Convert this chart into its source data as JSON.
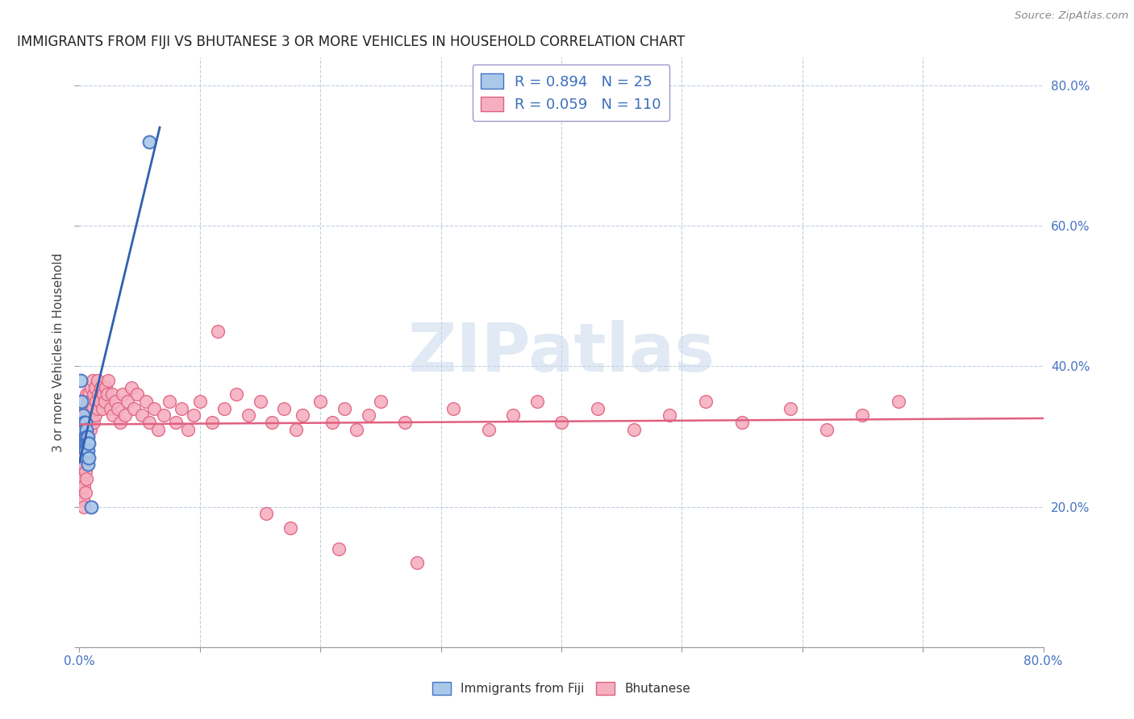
{
  "title": "IMMIGRANTS FROM FIJI VS BHUTANESE 3 OR MORE VEHICLES IN HOUSEHOLD CORRELATION CHART",
  "source": "Source: ZipAtlas.com",
  "ylabel": "3 or more Vehicles in Household",
  "right_yticks": [
    "80.0%",
    "60.0%",
    "40.0%",
    "20.0%"
  ],
  "right_ytick_vals": [
    0.8,
    0.6,
    0.4,
    0.2
  ],
  "xmin": 0.0,
  "xmax": 0.8,
  "ymin": 0.0,
  "ymax": 0.84,
  "fiji_R": 0.894,
  "fiji_N": 25,
  "bhutanese_R": 0.059,
  "bhutanese_N": 110,
  "fiji_color": "#aac8e8",
  "fiji_edge_color": "#4472c4",
  "fiji_line_color": "#3060b0",
  "bhutanese_color": "#f5b0c0",
  "bhutanese_edge_color": "#e06080",
  "bhutanese_line_color": "#e06080",
  "legend_R_color": "#3a6fbd",
  "watermark_text": "ZIPatlas",
  "watermark_color": "#c8d8ec",
  "fiji_x": [
    0.001,
    0.002,
    0.002,
    0.003,
    0.003,
    0.003,
    0.004,
    0.004,
    0.004,
    0.005,
    0.005,
    0.005,
    0.005,
    0.006,
    0.006,
    0.006,
    0.006,
    0.007,
    0.007,
    0.007,
    0.007,
    0.008,
    0.008,
    0.01,
    0.058
  ],
  "fiji_y": [
    0.38,
    0.35,
    0.32,
    0.33,
    0.31,
    0.3,
    0.32,
    0.31,
    0.29,
    0.32,
    0.3,
    0.29,
    0.28,
    0.31,
    0.3,
    0.29,
    0.27,
    0.3,
    0.29,
    0.28,
    0.26,
    0.29,
    0.27,
    0.2,
    0.72
  ],
  "bhutanese_x": [
    0.001,
    0.001,
    0.002,
    0.002,
    0.002,
    0.003,
    0.003,
    0.003,
    0.003,
    0.004,
    0.004,
    0.004,
    0.004,
    0.004,
    0.005,
    0.005,
    0.005,
    0.005,
    0.005,
    0.006,
    0.006,
    0.006,
    0.006,
    0.006,
    0.007,
    0.007,
    0.007,
    0.008,
    0.008,
    0.009,
    0.009,
    0.01,
    0.01,
    0.011,
    0.011,
    0.012,
    0.012,
    0.013,
    0.013,
    0.014,
    0.015,
    0.015,
    0.016,
    0.017,
    0.018,
    0.019,
    0.02,
    0.021,
    0.022,
    0.023,
    0.024,
    0.026,
    0.027,
    0.028,
    0.03,
    0.032,
    0.034,
    0.036,
    0.038,
    0.04,
    0.043,
    0.045,
    0.048,
    0.052,
    0.055,
    0.058,
    0.062,
    0.065,
    0.07,
    0.075,
    0.08,
    0.085,
    0.09,
    0.095,
    0.1,
    0.11,
    0.115,
    0.12,
    0.13,
    0.14,
    0.15,
    0.155,
    0.16,
    0.17,
    0.175,
    0.18,
    0.185,
    0.2,
    0.21,
    0.215,
    0.22,
    0.23,
    0.24,
    0.25,
    0.27,
    0.28,
    0.31,
    0.34,
    0.36,
    0.38,
    0.4,
    0.43,
    0.46,
    0.49,
    0.52,
    0.55,
    0.59,
    0.62,
    0.65,
    0.68
  ],
  "bhutanese_y": [
    0.27,
    0.24,
    0.28,
    0.25,
    0.22,
    0.3,
    0.27,
    0.24,
    0.21,
    0.32,
    0.29,
    0.26,
    0.23,
    0.2,
    0.34,
    0.31,
    0.28,
    0.25,
    0.22,
    0.36,
    0.33,
    0.3,
    0.27,
    0.24,
    0.35,
    0.32,
    0.29,
    0.36,
    0.32,
    0.35,
    0.31,
    0.37,
    0.33,
    0.38,
    0.34,
    0.36,
    0.32,
    0.37,
    0.33,
    0.35,
    0.38,
    0.34,
    0.36,
    0.35,
    0.37,
    0.34,
    0.36,
    0.35,
    0.37,
    0.36,
    0.38,
    0.34,
    0.36,
    0.33,
    0.35,
    0.34,
    0.32,
    0.36,
    0.33,
    0.35,
    0.37,
    0.34,
    0.36,
    0.33,
    0.35,
    0.32,
    0.34,
    0.31,
    0.33,
    0.35,
    0.32,
    0.34,
    0.31,
    0.33,
    0.35,
    0.32,
    0.45,
    0.34,
    0.36,
    0.33,
    0.35,
    0.19,
    0.32,
    0.34,
    0.17,
    0.31,
    0.33,
    0.35,
    0.32,
    0.14,
    0.34,
    0.31,
    0.33,
    0.35,
    0.32,
    0.12,
    0.34,
    0.31,
    0.33,
    0.35,
    0.32,
    0.34,
    0.31,
    0.33,
    0.35,
    0.32,
    0.34,
    0.31,
    0.33,
    0.35
  ]
}
